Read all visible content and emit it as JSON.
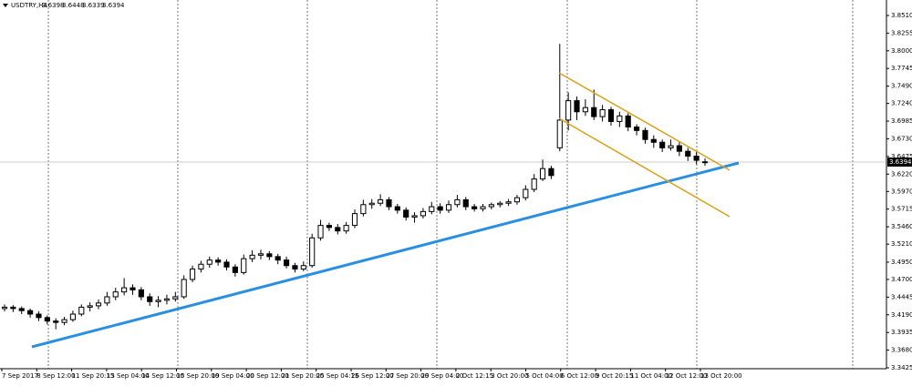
{
  "chart_data": {
    "type": "candlestick",
    "header": {
      "symbol": "USDTRY,H4",
      "open": 3.6398,
      "high": 3.6448,
      "low": 3.6339,
      "close": 3.6394
    },
    "last_price": 3.6394,
    "ylim": [
      3.3412,
      3.8733
    ],
    "yticks": [
      {
        "value": 3.3425,
        "label": "3.3425"
      },
      {
        "value": 3.368,
        "label": "3.3680"
      },
      {
        "value": 3.3935,
        "label": "3.3935"
      },
      {
        "value": 3.419,
        "label": "3.4190"
      },
      {
        "value": 3.4445,
        "label": "3.4445"
      },
      {
        "value": 3.47,
        "label": "3.4700"
      },
      {
        "value": 3.495,
        "label": "3.4950"
      },
      {
        "value": 3.521,
        "label": "3.5210"
      },
      {
        "value": 3.546,
        "label": "3.5460"
      },
      {
        "value": 3.5715,
        "label": "3.5715"
      },
      {
        "value": 3.597,
        "label": "3.5970"
      },
      {
        "value": 3.622,
        "label": "3.6220"
      },
      {
        "value": 3.6475,
        "label": "3.6475"
      },
      {
        "value": 3.673,
        "label": "3.6730"
      },
      {
        "value": 3.6985,
        "label": "3.6985"
      },
      {
        "value": 3.724,
        "label": "3.7240"
      },
      {
        "value": 3.749,
        "label": "3.7490"
      },
      {
        "value": 3.7745,
        "label": "3.7745"
      },
      {
        "value": 3.8,
        "label": "3.8000"
      },
      {
        "value": 3.8255,
        "label": "3.8255"
      },
      {
        "value": 3.851,
        "label": "3.8510"
      }
    ],
    "time_labels": [
      "7 Sep 2017",
      "8 Sep 12:00",
      "11 Sep 20:15",
      "13 Sep 04:00",
      "14 Sep 12:00",
      "15 Sep 20:00",
      "19 Sep 04:00",
      "20 Sep 12:00",
      "21 Sep 20:00",
      "25 Sep 04:15",
      "26 Sep 12:00",
      "27 Sep 20:00",
      "29 Sep 04:00",
      "2 Oct 12:15",
      "3 Oct 20:00",
      "5 Oct 04:00",
      "6 Oct 12:00",
      "9 Oct 20:15",
      "11 Oct 04:00",
      "12 Oct 12:00",
      "13 Oct 20:00"
    ],
    "candles": [
      [
        3.428,
        3.434,
        3.424,
        3.43
      ],
      [
        3.43,
        3.433,
        3.423,
        3.428
      ],
      [
        3.428,
        3.431,
        3.42,
        3.425
      ],
      [
        3.425,
        3.428,
        3.415,
        3.42
      ],
      [
        3.42,
        3.424,
        3.41,
        3.415
      ],
      [
        3.415,
        3.418,
        3.405,
        3.41
      ],
      [
        3.41,
        3.414,
        3.398,
        3.408
      ],
      [
        3.408,
        3.416,
        3.404,
        3.412
      ],
      [
        3.412,
        3.425,
        3.409,
        3.42
      ],
      [
        3.42,
        3.434,
        3.417,
        3.43
      ],
      [
        3.43,
        3.437,
        3.424,
        3.432
      ],
      [
        3.432,
        3.441,
        3.427,
        3.436
      ],
      [
        3.436,
        3.452,
        3.432,
        3.445
      ],
      [
        3.445,
        3.458,
        3.44,
        3.452
      ],
      [
        3.452,
        3.472,
        3.447,
        3.458
      ],
      [
        3.458,
        3.463,
        3.448,
        3.455
      ],
      [
        3.455,
        3.459,
        3.44,
        3.445
      ],
      [
        3.445,
        3.45,
        3.432,
        3.438
      ],
      [
        3.438,
        3.446,
        3.43,
        3.44
      ],
      [
        3.44,
        3.448,
        3.434,
        3.442
      ],
      [
        3.442,
        3.452,
        3.438,
        3.445
      ],
      [
        3.445,
        3.476,
        3.442,
        3.47
      ],
      [
        3.47,
        3.49,
        3.466,
        3.485
      ],
      [
        3.485,
        3.497,
        3.48,
        3.492
      ],
      [
        3.492,
        3.503,
        3.487,
        3.498
      ],
      [
        3.498,
        3.502,
        3.49,
        3.495
      ],
      [
        3.495,
        3.499,
        3.483,
        3.488
      ],
      [
        3.488,
        3.492,
        3.474,
        3.48
      ],
      [
        3.48,
        3.506,
        3.477,
        3.5
      ],
      [
        3.5,
        3.512,
        3.495,
        3.505
      ],
      [
        3.505,
        3.513,
        3.499,
        3.507
      ],
      [
        3.507,
        3.511,
        3.498,
        3.503
      ],
      [
        3.503,
        3.507,
        3.492,
        3.498
      ],
      [
        3.498,
        3.503,
        3.486,
        3.49
      ],
      [
        3.49,
        3.494,
        3.48,
        3.485
      ],
      [
        3.485,
        3.496,
        3.482,
        3.49
      ],
      [
        3.49,
        3.536,
        3.487,
        3.53
      ],
      [
        3.53,
        3.556,
        3.526,
        3.548
      ],
      [
        3.548,
        3.552,
        3.54,
        3.545
      ],
      [
        3.545,
        3.55,
        3.535,
        3.54
      ],
      [
        3.54,
        3.553,
        3.536,
        3.548
      ],
      [
        3.548,
        3.571,
        3.544,
        3.565
      ],
      [
        3.565,
        3.585,
        3.561,
        3.578
      ],
      [
        3.578,
        3.586,
        3.572,
        3.58
      ],
      [
        3.58,
        3.593,
        3.576,
        3.585
      ],
      [
        3.585,
        3.589,
        3.57,
        3.575
      ],
      [
        3.575,
        3.579,
        3.565,
        3.57
      ],
      [
        3.57,
        3.574,
        3.555,
        3.56
      ],
      [
        3.56,
        3.567,
        3.552,
        3.562
      ],
      [
        3.562,
        3.573,
        3.558,
        3.568
      ],
      [
        3.568,
        3.582,
        3.564,
        3.575
      ],
      [
        3.575,
        3.58,
        3.565,
        3.57
      ],
      [
        3.57,
        3.584,
        3.566,
        3.578
      ],
      [
        3.578,
        3.592,
        3.574,
        3.585
      ],
      [
        3.585,
        3.589,
        3.57,
        3.575
      ],
      [
        3.575,
        3.579,
        3.568,
        3.572
      ],
      [
        3.572,
        3.579,
        3.568,
        3.575
      ],
      [
        3.575,
        3.581,
        3.571,
        3.578
      ],
      [
        3.578,
        3.583,
        3.574,
        3.58
      ],
      [
        3.58,
        3.586,
        3.576,
        3.582
      ],
      [
        3.582,
        3.592,
        3.578,
        3.588
      ],
      [
        3.588,
        3.606,
        3.584,
        3.6
      ],
      [
        3.6,
        3.622,
        3.596,
        3.615
      ],
      [
        3.615,
        3.643,
        3.612,
        3.63
      ],
      [
        3.63,
        3.634,
        3.615,
        3.62
      ],
      [
        3.66,
        3.81,
        3.655,
        3.7
      ],
      [
        3.7,
        3.74,
        3.685,
        3.728
      ],
      [
        3.728,
        3.734,
        3.7,
        3.712
      ],
      [
        3.712,
        3.73,
        3.706,
        3.718
      ],
      [
        3.718,
        3.744,
        3.7,
        3.705
      ],
      [
        3.705,
        3.722,
        3.698,
        3.715
      ],
      [
        3.715,
        3.719,
        3.692,
        3.698
      ],
      [
        3.698,
        3.712,
        3.69,
        3.706
      ],
      [
        3.706,
        3.71,
        3.684,
        3.69
      ],
      [
        3.69,
        3.694,
        3.678,
        3.685
      ],
      [
        3.685,
        3.689,
        3.666,
        3.672
      ],
      [
        3.672,
        3.678,
        3.66,
        3.668
      ],
      [
        3.668,
        3.672,
        3.654,
        3.66
      ],
      [
        3.66,
        3.672,
        3.656,
        3.663
      ],
      [
        3.663,
        3.668,
        3.648,
        3.655
      ],
      [
        3.655,
        3.66,
        3.641,
        3.648
      ],
      [
        3.648,
        3.654,
        3.636,
        3.642
      ],
      [
        3.6398,
        3.6448,
        3.6339,
        3.6394
      ]
    ],
    "up_color": "#ffffff",
    "down_color": "#000000",
    "grid": true
  }
}
